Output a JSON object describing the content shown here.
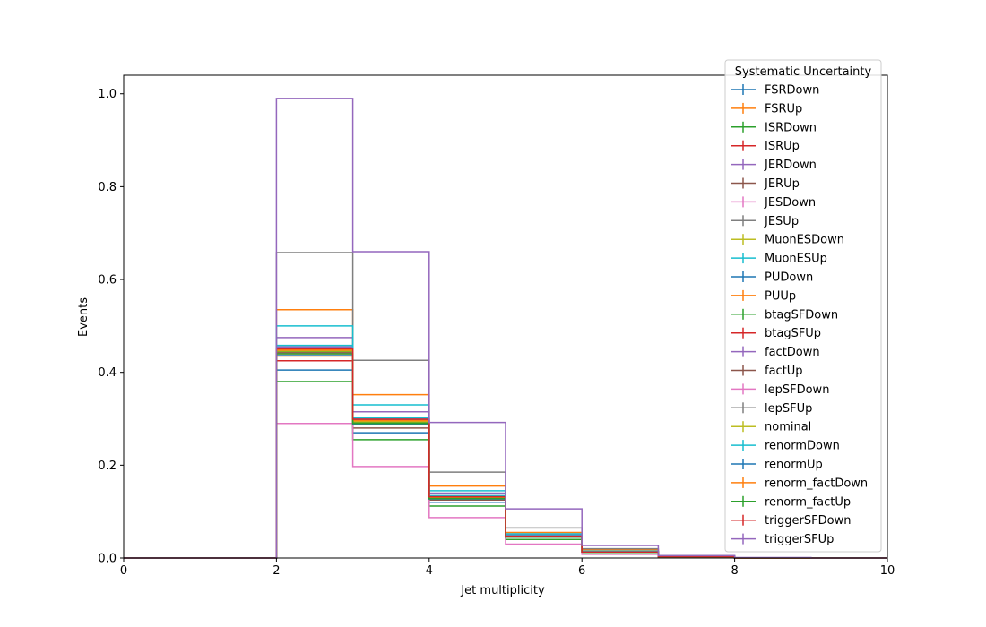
{
  "chart_data": {
    "type": "histogram-step",
    "xlabel": "Jet multiplicity",
    "ylabel": "Events",
    "xlim": [
      0,
      10
    ],
    "ylim": [
      0,
      1.04
    ],
    "x_ticks": [
      "0",
      "2",
      "4",
      "6",
      "8",
      "10"
    ],
    "y_ticks": [
      "0.0",
      "0.2",
      "0.4",
      "0.6",
      "0.8",
      "1.0"
    ],
    "bin_edges": [
      0,
      1,
      2,
      3,
      4,
      5,
      6,
      7,
      8,
      9,
      10
    ],
    "grid": false,
    "legend": {
      "title": "Systematic Uncertainty",
      "position": "top-right"
    },
    "series": [
      {
        "name": "FSRDown",
        "color": "#1f77b4",
        "values": [
          0,
          0,
          0.405,
          0.27,
          0.12,
          0.045,
          0.012,
          0.003,
          0,
          0
        ]
      },
      {
        "name": "FSRUp",
        "color": "#ff7f0e",
        "values": [
          0,
          0,
          0.535,
          0.352,
          0.155,
          0.055,
          0.018,
          0.004,
          0,
          0
        ]
      },
      {
        "name": "ISRDown",
        "color": "#2ca02c",
        "values": [
          0,
          0,
          0.38,
          0.255,
          0.112,
          0.04,
          0.012,
          0.003,
          0,
          0
        ]
      },
      {
        "name": "ISRUp",
        "color": "#d62728",
        "values": [
          0,
          0,
          0.425,
          0.3,
          0.133,
          0.048,
          0.014,
          0.003,
          0,
          0
        ]
      },
      {
        "name": "JERDown",
        "color": "#9467bd",
        "values": [
          0,
          0,
          0.475,
          0.315,
          0.14,
          0.05,
          0.014,
          0.003,
          0,
          0
        ]
      },
      {
        "name": "JERUp",
        "color": "#8c564b",
        "values": [
          0,
          0,
          0.445,
          0.28,
          0.125,
          0.045,
          0.013,
          0.003,
          0,
          0
        ]
      },
      {
        "name": "JESDown",
        "color": "#e377c2",
        "values": [
          0,
          0,
          0.29,
          0.197,
          0.087,
          0.03,
          0.008,
          0.002,
          0,
          0
        ]
      },
      {
        "name": "JESUp",
        "color": "#7f7f7f",
        "values": [
          0,
          0,
          0.658,
          0.426,
          0.185,
          0.065,
          0.02,
          0.005,
          0,
          0
        ]
      },
      {
        "name": "MuonESDown",
        "color": "#bcbd22",
        "values": [
          0,
          0,
          0.44,
          0.292,
          0.13,
          0.046,
          0.013,
          0.003,
          0,
          0
        ]
      },
      {
        "name": "MuonESUp",
        "color": "#17becf",
        "values": [
          0,
          0,
          0.5,
          0.33,
          0.145,
          0.052,
          0.015,
          0.004,
          0,
          0
        ]
      },
      {
        "name": "PUDown",
        "color": "#1f77b4",
        "values": [
          0,
          0,
          0.455,
          0.298,
          0.133,
          0.047,
          0.014,
          0.003,
          0,
          0
        ]
      },
      {
        "name": "PUUp",
        "color": "#ff7f0e",
        "values": [
          0,
          0,
          0.435,
          0.288,
          0.127,
          0.045,
          0.013,
          0.003,
          0,
          0
        ]
      },
      {
        "name": "btagSFDown",
        "color": "#2ca02c",
        "values": [
          0,
          0,
          0.445,
          0.293,
          0.13,
          0.046,
          0.013,
          0.003,
          0,
          0
        ]
      },
      {
        "name": "btagSFUp",
        "color": "#d62728",
        "values": [
          0,
          0,
          0.45,
          0.297,
          0.131,
          0.046,
          0.013,
          0.003,
          0,
          0
        ]
      },
      {
        "name": "factDown",
        "color": "#9467bd",
        "values": [
          0,
          0,
          0.455,
          0.3,
          0.134,
          0.048,
          0.014,
          0.003,
          0,
          0
        ]
      },
      {
        "name": "factUp",
        "color": "#8c564b",
        "values": [
          0,
          0,
          0.442,
          0.29,
          0.128,
          0.045,
          0.013,
          0.003,
          0,
          0
        ]
      },
      {
        "name": "lepSFDown",
        "color": "#e377c2",
        "values": [
          0,
          0,
          0.44,
          0.29,
          0.128,
          0.045,
          0.013,
          0.003,
          0,
          0
        ]
      },
      {
        "name": "lepSFUp",
        "color": "#7f7f7f",
        "values": [
          0,
          0,
          0.452,
          0.298,
          0.131,
          0.046,
          0.013,
          0.003,
          0,
          0
        ]
      },
      {
        "name": "nominal",
        "color": "#bcbd22",
        "values": [
          0,
          0,
          0.446,
          0.294,
          0.13,
          0.046,
          0.013,
          0.003,
          0,
          0
        ]
      },
      {
        "name": "renormDown",
        "color": "#17becf",
        "values": [
          0,
          0,
          0.458,
          0.302,
          0.134,
          0.048,
          0.014,
          0.003,
          0,
          0
        ]
      },
      {
        "name": "renormUp",
        "color": "#1f77b4",
        "values": [
          0,
          0,
          0.436,
          0.288,
          0.127,
          0.045,
          0.013,
          0.003,
          0,
          0
        ]
      },
      {
        "name": "renorm_factDown",
        "color": "#ff7f0e",
        "values": [
          0,
          0,
          0.448,
          0.296,
          0.131,
          0.046,
          0.013,
          0.003,
          0,
          0
        ]
      },
      {
        "name": "renorm_factUp",
        "color": "#2ca02c",
        "values": [
          0,
          0,
          0.44,
          0.29,
          0.128,
          0.045,
          0.013,
          0.003,
          0,
          0
        ]
      },
      {
        "name": "triggerSFDown",
        "color": "#d62728",
        "values": [
          0,
          0,
          0.452,
          0.299,
          0.132,
          0.047,
          0.013,
          0.003,
          0,
          0
        ]
      },
      {
        "name": "triggerSFUp",
        "color": "#9467bd",
        "values": [
          0,
          0,
          0.99,
          0.66,
          0.292,
          0.106,
          0.027,
          0.005,
          0.001,
          0
        ]
      }
    ]
  }
}
